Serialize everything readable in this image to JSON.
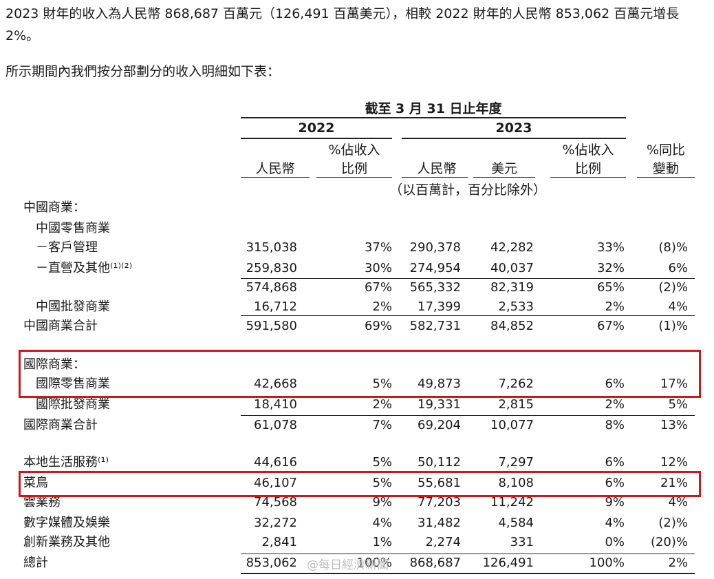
{
  "intro_text": "2023 財年的收入為人民幣 868,687 百萬元（126,491 百萬美元），相較 2022 財年的人民幣 853,062 百萬元增長 2%。",
  "lead_text": "所示期間內我們按分部劃分的收入明細如下表：",
  "table": {
    "period_header": "截至 3 月 31 日止年度",
    "year_2022": "2022",
    "year_2023": "2023",
    "col_rmb_2022": "人民幣",
    "col_pct_2022_line1": "%佔收入",
    "col_pct_2022_line2": "比例",
    "col_rmb_2023": "人民幣",
    "col_usd_2023": "美元",
    "col_pct_2023_line1": "%佔收入",
    "col_pct_2023_line2": "比例",
    "col_yoy_line1": "%同比",
    "col_yoy_line2": "變動",
    "units_note": "（以百萬計，百分比除外）",
    "rows": [
      {
        "label": "中國商業：",
        "v1": "",
        "v2": "",
        "v3": "",
        "v4": "",
        "v5": "",
        "v6": ""
      },
      {
        "label": "中國零售商業",
        "v1": "",
        "v2": "",
        "v3": "",
        "v4": "",
        "v5": "",
        "v6": ""
      },
      {
        "label": "－客戶管理",
        "v1": "315,038",
        "v2": "37%",
        "v3": "290,378",
        "v4": "42,282",
        "v5": "33%",
        "v6": "(8)%"
      },
      {
        "label": "－直營及其他⁽¹⁾⁽²⁾",
        "v1": "259,830",
        "v2": "30%",
        "v3": "274,954",
        "v4": "40,037",
        "v5": "32%",
        "v6": "6%"
      },
      {
        "label": "",
        "v1": "574,868",
        "v2": "67%",
        "v3": "565,332",
        "v4": "82,319",
        "v5": "65%",
        "v6": "(2)%"
      },
      {
        "label": "中國批發商業",
        "v1": "16,712",
        "v2": "2%",
        "v3": "17,399",
        "v4": "2,533",
        "v5": "2%",
        "v6": "4%"
      },
      {
        "label": "中國商業合計",
        "v1": "591,580",
        "v2": "69%",
        "v3": "582,731",
        "v4": "84,852",
        "v5": "67%",
        "v6": "(1)%"
      },
      {
        "label": "國際商業：",
        "v1": "",
        "v2": "",
        "v3": "",
        "v4": "",
        "v5": "",
        "v6": ""
      },
      {
        "label": "國際零售商業",
        "v1": "42,668",
        "v2": "5%",
        "v3": "49,873",
        "v4": "7,262",
        "v5": "6%",
        "v6": "17%"
      },
      {
        "label": "國際批發商業",
        "v1": "18,410",
        "v2": "2%",
        "v3": "19,331",
        "v4": "2,815",
        "v5": "2%",
        "v6": "5%"
      },
      {
        "label": "國際商業合計",
        "v1": "61,078",
        "v2": "7%",
        "v3": "69,204",
        "v4": "10,077",
        "v5": "8%",
        "v6": "13%"
      },
      {
        "label": "本地生活服務⁽¹⁾",
        "v1": "44,616",
        "v2": "5%",
        "v3": "50,112",
        "v4": "7,297",
        "v5": "6%",
        "v6": "12%"
      },
      {
        "label": "菜鳥",
        "v1": "46,107",
        "v2": "5%",
        "v3": "55,681",
        "v4": "8,108",
        "v5": "6%",
        "v6": "21%"
      },
      {
        "label": "雲業務",
        "v1": "74,568",
        "v2": "9%",
        "v3": "77,203",
        "v4": "11,242",
        "v5": "9%",
        "v6": "4%"
      },
      {
        "label": "數字媒體及娛樂",
        "v1": "32,272",
        "v2": "4%",
        "v3": "31,482",
        "v4": "4,584",
        "v5": "4%",
        "v6": "(2)%"
      },
      {
        "label": "創新業務及其他",
        "v1": "2,841",
        "v2": "1%",
        "v3": "2,274",
        "v4": "331",
        "v5": "0%",
        "v6": "(20)%"
      },
      {
        "label": "總計",
        "v1": "853,062",
        "v2": "100%",
        "v3": "868,687",
        "v4": "126,491",
        "v5": "100%",
        "v6": "2%"
      }
    ]
  },
  "highlight_color": "#d0161b",
  "watermark_text": "@每日經濟新聞"
}
